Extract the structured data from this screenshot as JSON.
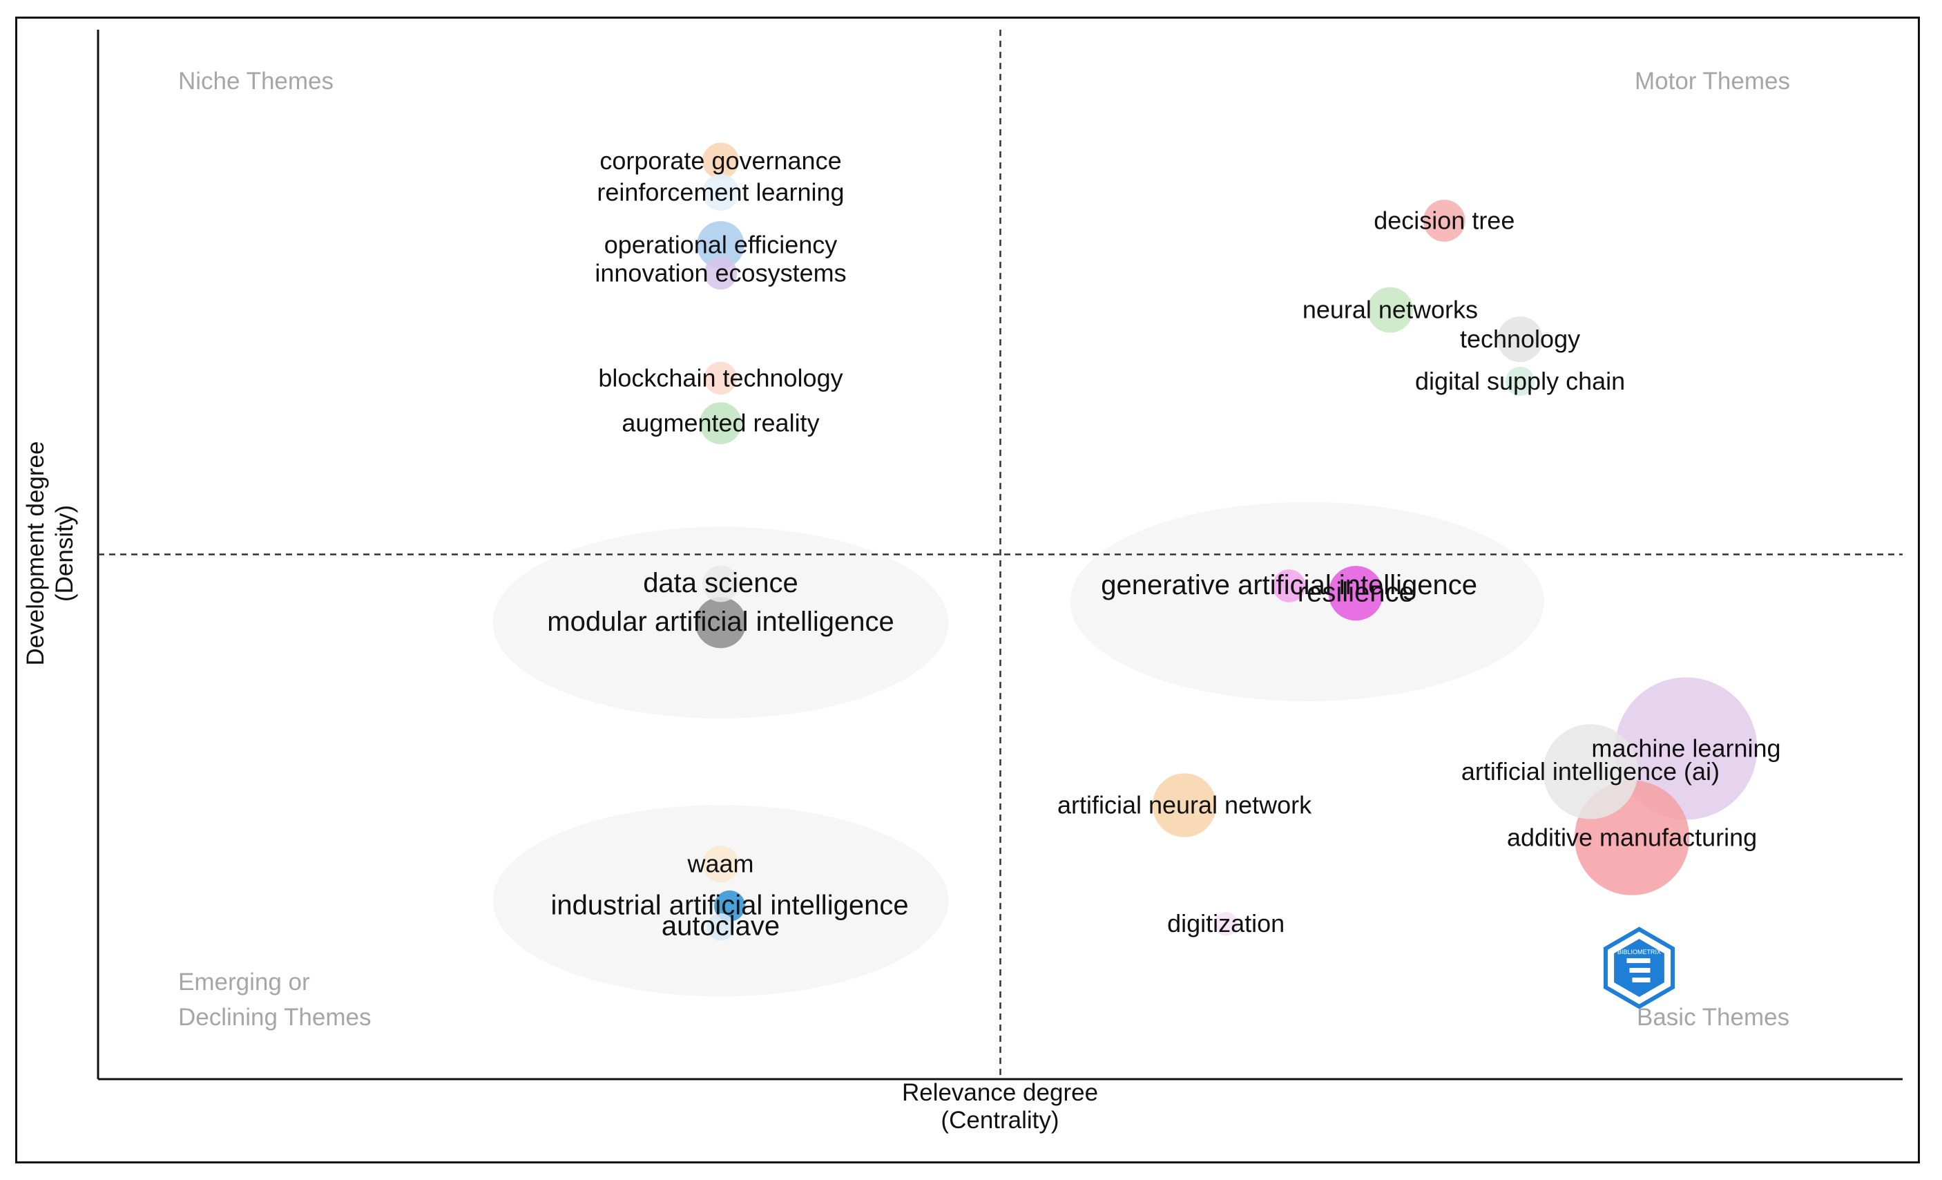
{
  "chart_data": {
    "type": "scatter",
    "title": "",
    "xlabel": "Relevance degree",
    "xlabel_sub": "(Centrality)",
    "ylabel": "Development degree",
    "ylabel_sub": "(Density)",
    "xlim": [
      0,
      100
    ],
    "ylim": [
      0,
      100
    ],
    "x_midline": 50,
    "y_midline": 50,
    "grid": false,
    "quadrants": {
      "top_left": "Niche Themes",
      "top_right": "Motor Themes",
      "bottom_left_line1": "Emerging or",
      "bottom_left_line2": "Declining Themes",
      "bottom_right": "Basic Themes"
    },
    "points": [
      {
        "label": "corporate governance",
        "x": 34.5,
        "y": 87.5,
        "size": 2.0,
        "color": "#f9d4b0"
      },
      {
        "label": "reinforcement learning",
        "x": 34.5,
        "y": 84.5,
        "size": 2.0,
        "color": "#e3eef8"
      },
      {
        "label": "operational efficiency",
        "x": 34.5,
        "y": 79.5,
        "size": 2.6,
        "color": "#a9cbec"
      },
      {
        "label": "innovation ecosystems",
        "x": 34.5,
        "y": 76.8,
        "size": 1.8,
        "color": "#d7c4ea"
      },
      {
        "label": "blockchain technology",
        "x": 34.5,
        "y": 66.8,
        "size": 1.8,
        "color": "#fbd9cd"
      },
      {
        "label": "augmented reality",
        "x": 34.5,
        "y": 62.5,
        "size": 2.3,
        "color": "#bfe4bf"
      },
      {
        "label": "data science",
        "x": 34.5,
        "y": 47.2,
        "size": 2.0,
        "color": "#e9e9e9"
      },
      {
        "label": "modular artificial intelligence",
        "x": 34.5,
        "y": 43.5,
        "size": 2.8,
        "color": "#8c8c8c"
      },
      {
        "label": "waam",
        "x": 34.5,
        "y": 20.5,
        "size": 2.0,
        "color": "#fbe7cf"
      },
      {
        "label": "industrial artificial intelligence",
        "x": 35.0,
        "y": 16.5,
        "size": 1.7,
        "color": "#2d93d6"
      },
      {
        "label": "autoclave",
        "x": 34.5,
        "y": 14.5,
        "size": 1.5,
        "color": "#d8e9f5"
      },
      {
        "label": "decision tree",
        "x": 74.6,
        "y": 81.8,
        "size": 2.3,
        "color": "#f6adad"
      },
      {
        "label": "neural networks",
        "x": 71.6,
        "y": 73.3,
        "size": 2.5,
        "color": "#c7e8c2"
      },
      {
        "label": "technology",
        "x": 78.8,
        "y": 70.5,
        "size": 2.5,
        "color": "#e3e3e3"
      },
      {
        "label": "digital supply chain",
        "x": 78.8,
        "y": 66.5,
        "size": 1.6,
        "color": "#d4ecdf"
      },
      {
        "label": "generative artificial intelligence",
        "x": 66.0,
        "y": 47.0,
        "size": 1.8,
        "color": "#f3a4ee"
      },
      {
        "label": "resilience",
        "x": 69.7,
        "y": 46.3,
        "size": 3.0,
        "color": "#e459de"
      },
      {
        "label": "artificial neural network",
        "x": 60.2,
        "y": 26.1,
        "size": 3.5,
        "color": "#f8d3a9"
      },
      {
        "label": "machine learning",
        "x": 88.0,
        "y": 31.5,
        "size": 7.8,
        "color": "#e2cceb"
      },
      {
        "label": "artificial intelligence (ai)",
        "x": 82.7,
        "y": 29.3,
        "size": 5.2,
        "color": "#e6e6e6"
      },
      {
        "label": "additive manufacturing",
        "x": 85.0,
        "y": 23.0,
        "size": 6.3,
        "color": "#f5a0a5"
      },
      {
        "label": "digitization",
        "x": 62.5,
        "y": 14.8,
        "size": 1.3,
        "color": "#f6e2f4"
      }
    ],
    "clusters": [
      {
        "x": 34.5,
        "y": 43.5,
        "size": 25,
        "color": "#f6f6f6"
      },
      {
        "x": 34.5,
        "y": 17.0,
        "size": 25,
        "color": "#f6f6f6"
      },
      {
        "x": 67.0,
        "y": 45.5,
        "size": 26,
        "color": "#f6f6f6"
      }
    ],
    "logo": {
      "text": "BIBLIOMETRIX",
      "color": "#1f7fd6"
    }
  }
}
